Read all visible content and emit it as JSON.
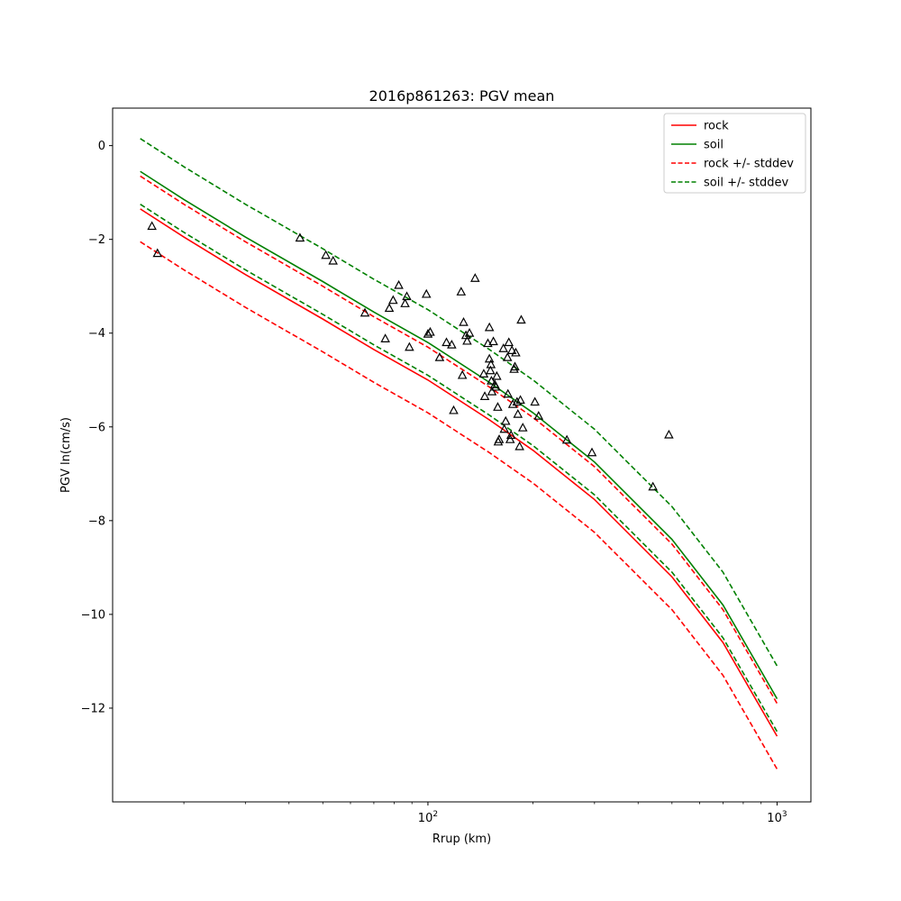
{
  "chart_data": {
    "type": "line",
    "title": "2016p861263: PGV mean",
    "xlabel": "Rrup (km)",
    "ylabel": "PGV ln(cm/s)",
    "xscale": "log",
    "xlim": [
      12.5,
      1250
    ],
    "ylim": [
      -14.0,
      0.8
    ],
    "xticks": [
      {
        "value": 100,
        "base": "10",
        "exp": "2"
      },
      {
        "value": 1000,
        "base": "10",
        "exp": "3"
      }
    ],
    "yticks": [
      {
        "value": 0,
        "label": "0"
      },
      {
        "value": -2,
        "label": "−2"
      },
      {
        "value": -4,
        "label": "−4"
      },
      {
        "value": -6,
        "label": "−6"
      },
      {
        "value": -8,
        "label": "−8"
      },
      {
        "value": -10,
        "label": "−10"
      },
      {
        "value": -12,
        "label": "−12"
      }
    ],
    "grid": false,
    "legend_position": "top-right",
    "series": [
      {
        "name": "rock",
        "color": "#ff0000",
        "dash": false,
        "x": [
          15,
          20,
          30,
          50,
          70,
          100,
          150,
          200,
          300,
          500,
          700,
          1000
        ],
        "y": [
          -1.35,
          -1.95,
          -2.75,
          -3.7,
          -4.35,
          -5.0,
          -5.85,
          -6.5,
          -7.55,
          -9.2,
          -10.6,
          -12.6
        ]
      },
      {
        "name": "soil",
        "color": "#008000",
        "dash": false,
        "x": [
          15,
          20,
          30,
          50,
          70,
          100,
          150,
          200,
          300,
          500,
          700,
          1000
        ],
        "y": [
          -0.55,
          -1.15,
          -1.95,
          -2.9,
          -3.55,
          -4.2,
          -5.05,
          -5.7,
          -6.75,
          -8.4,
          -9.8,
          -11.8
        ]
      },
      {
        "name": "rock +/- stddev",
        "color": "#ff0000",
        "dash": true,
        "x": [
          15,
          20,
          30,
          50,
          70,
          100,
          150,
          200,
          300,
          500,
          700,
          1000
        ],
        "y": [
          -0.65,
          -1.25,
          -2.05,
          -3.0,
          -3.65,
          -4.3,
          -5.15,
          -5.8,
          -6.85,
          -8.5,
          -9.9,
          -11.9
        ]
      },
      {
        "name": "",
        "color": "#ff0000",
        "dash": true,
        "x": [
          15,
          20,
          30,
          50,
          70,
          100,
          150,
          200,
          300,
          500,
          700,
          1000
        ],
        "y": [
          -2.05,
          -2.65,
          -3.45,
          -4.4,
          -5.05,
          -5.7,
          -6.55,
          -7.2,
          -8.25,
          -9.9,
          -11.3,
          -13.3
        ]
      },
      {
        "name": "soil +/- stddev",
        "color": "#008000",
        "dash": true,
        "x": [
          15,
          20,
          30,
          50,
          70,
          100,
          150,
          200,
          300,
          500,
          700,
          1000
        ],
        "y": [
          0.15,
          -0.45,
          -1.25,
          -2.2,
          -2.85,
          -3.5,
          -4.35,
          -5.0,
          -6.05,
          -7.7,
          -9.1,
          -11.1
        ]
      },
      {
        "name": "",
        "color": "#008000",
        "dash": true,
        "x": [
          15,
          20,
          30,
          50,
          70,
          100,
          150,
          200,
          300,
          500,
          700,
          1000
        ],
        "y": [
          -1.25,
          -1.85,
          -2.65,
          -3.6,
          -4.25,
          -4.9,
          -5.75,
          -6.4,
          -7.45,
          -9.1,
          -10.5,
          -12.5
        ]
      }
    ],
    "observations": {
      "marker": "triangle",
      "points": [
        [
          16.2,
          -1.72
        ],
        [
          16.8,
          -2.3
        ],
        [
          43,
          -1.97
        ],
        [
          51,
          -2.34
        ],
        [
          53.5,
          -2.46
        ],
        [
          66,
          -3.57
        ],
        [
          75.5,
          -4.12
        ],
        [
          77.5,
          -3.47
        ],
        [
          79.5,
          -3.3
        ],
        [
          82.5,
          -2.98
        ],
        [
          86,
          -3.37
        ],
        [
          87,
          -3.22
        ],
        [
          88.5,
          -4.3
        ],
        [
          99,
          -3.17
        ],
        [
          100,
          -4.02
        ],
        [
          101.5,
          -3.98
        ],
        [
          108,
          -4.52
        ],
        [
          113,
          -4.2
        ],
        [
          117,
          -4.25
        ],
        [
          118.5,
          -5.65
        ],
        [
          124.5,
          -3.12
        ],
        [
          125.5,
          -4.9
        ],
        [
          126.5,
          -3.77
        ],
        [
          128.5,
          -4.05
        ],
        [
          129.5,
          -4.17
        ],
        [
          131.5,
          -4.0
        ],
        [
          136.5,
          -2.83
        ],
        [
          144.5,
          -4.87
        ],
        [
          145.5,
          -5.35
        ],
        [
          148.5,
          -4.22
        ],
        [
          150,
          -3.88
        ],
        [
          150,
          -4.55
        ],
        [
          151,
          -4.8
        ],
        [
          151.5,
          -4.67
        ],
        [
          152,
          -5.02
        ],
        [
          152.5,
          -5.25
        ],
        [
          154,
          -4.18
        ],
        [
          155.5,
          -5.1
        ],
        [
          156.5,
          -5.15
        ],
        [
          157.5,
          -4.92
        ],
        [
          158.5,
          -5.58
        ],
        [
          159,
          -6.32
        ],
        [
          160,
          -6.27
        ],
        [
          164.5,
          -4.33
        ],
        [
          165.5,
          -6.05
        ],
        [
          167,
          -5.88
        ],
        [
          169,
          -4.52
        ],
        [
          169.5,
          -5.3
        ],
        [
          170.5,
          -4.2
        ],
        [
          172,
          -6.27
        ],
        [
          173,
          -6.18
        ],
        [
          174,
          -4.37
        ],
        [
          175,
          -5.52
        ],
        [
          176.5,
          -4.77
        ],
        [
          177.5,
          -4.72
        ],
        [
          178.5,
          -4.42
        ],
        [
          180,
          -5.47
        ],
        [
          181,
          -5.73
        ],
        [
          183,
          -6.42
        ],
        [
          184,
          -5.43
        ],
        [
          185,
          -3.72
        ],
        [
          187,
          -6.02
        ],
        [
          202.5,
          -5.47
        ],
        [
          207.5,
          -5.77
        ],
        [
          250,
          -6.28
        ],
        [
          295,
          -6.55
        ],
        [
          441,
          -7.28
        ],
        [
          490,
          -6.17
        ]
      ]
    }
  }
}
